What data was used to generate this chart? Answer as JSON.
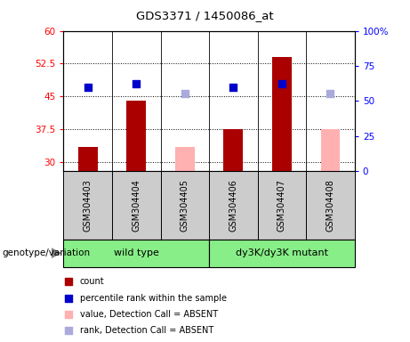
{
  "title": "GDS3371 / 1450086_at",
  "samples": [
    "GSM304403",
    "GSM304404",
    "GSM304405",
    "GSM304406",
    "GSM304407",
    "GSM304408"
  ],
  "bar_values": [
    33.5,
    44.0,
    33.5,
    37.5,
    54.0,
    37.5
  ],
  "bar_absent": [
    false,
    false,
    true,
    false,
    false,
    true
  ],
  "rank_values": [
    60,
    62,
    55,
    60,
    62,
    55
  ],
  "rank_absent": [
    false,
    false,
    true,
    false,
    false,
    true
  ],
  "ylim_left": [
    28,
    60
  ],
  "ylim_right": [
    0,
    100
  ],
  "yticks_left": [
    30,
    37.5,
    45,
    52.5,
    60
  ],
  "yticks_right": [
    0,
    25,
    50,
    75,
    100
  ],
  "ytick_labels_left": [
    "30",
    "37.5",
    "45",
    "52.5",
    "60"
  ],
  "ytick_labels_right": [
    "0",
    "25",
    "50",
    "75",
    "100%"
  ],
  "bar_color_present": "#AA0000",
  "bar_color_absent": "#FFB0B0",
  "rank_color_present": "#0000CC",
  "rank_color_absent": "#AAAADD",
  "group1_label": "wild type",
  "group2_label": "dy3K/dy3K mutant",
  "group_color": "#88EE88",
  "genotype_label": "genotype/variation",
  "legend_items": [
    {
      "label": "count",
      "color": "#AA0000"
    },
    {
      "label": "percentile rank within the sample",
      "color": "#0000CC"
    },
    {
      "label": "value, Detection Call = ABSENT",
      "color": "#FFB0B0"
    },
    {
      "label": "rank, Detection Call = ABSENT",
      "color": "#AAAADD"
    }
  ],
  "sample_cell_color": "#CCCCCC",
  "plot_bg_color": "#FFFFFF"
}
